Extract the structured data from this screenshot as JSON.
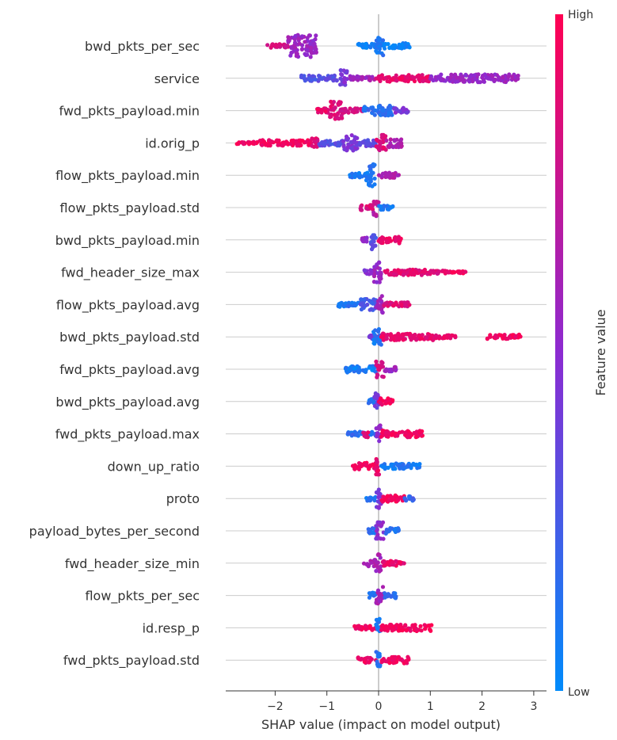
{
  "chart_data": {
    "type": "scatter",
    "subtype": "shap-beeswarm",
    "title": "",
    "xlabel": "SHAP value (impact on model output)",
    "ylabel": "",
    "xlim": [
      -2.95,
      3.0
    ],
    "xticks": [
      -2,
      -1,
      0,
      1,
      2,
      3
    ],
    "xtick_labels": [
      "−2",
      "−1",
      "0",
      "1",
      "2",
      "3"
    ],
    "grid": "horizontal-rows",
    "colorbar": {
      "title": "Feature value",
      "high_label": "High",
      "low_label": "Low",
      "low_color": "#008bfb",
      "mid_color": "#8c2bd1",
      "high_color": "#ff0052"
    },
    "features": [
      {
        "name": "bwd_pkts_per_sec",
        "segments": [
          [
            -2.15,
            -1.75,
            0.82,
            0.2
          ],
          [
            -1.75,
            -1.2,
            0.55,
            1.0
          ],
          [
            -0.4,
            -0.05,
            0.08,
            0.2
          ],
          [
            -0.05,
            0.1,
            0.1,
            0.9
          ],
          [
            0.1,
            0.6,
            0.05,
            0.25
          ]
        ]
      },
      {
        "name": "service",
        "segments": [
          [
            -1.5,
            -0.8,
            0.3,
            0.25
          ],
          [
            -0.75,
            -0.6,
            0.45,
            0.75
          ],
          [
            -0.55,
            -0.05,
            0.6,
            0.2
          ],
          [
            -0.05,
            1.0,
            0.9,
            0.3
          ],
          [
            1.0,
            1.2,
            0.5,
            0.2
          ],
          [
            1.2,
            2.7,
            0.55,
            0.35
          ]
        ]
      },
      {
        "name": "fwd_pkts_payload.min",
        "segments": [
          [
            -1.2,
            -0.95,
            0.9,
            0.2
          ],
          [
            -0.95,
            -0.7,
            0.85,
            0.8
          ],
          [
            -0.7,
            -0.3,
            0.8,
            0.2
          ],
          [
            -0.3,
            0.3,
            0.15,
            0.45
          ],
          [
            0.3,
            0.6,
            0.45,
            0.25
          ]
        ]
      },
      {
        "name": "id.orig_p",
        "segments": [
          [
            -2.75,
            -2.3,
            0.95,
            0.1
          ],
          [
            -2.3,
            -1.3,
            0.95,
            0.25
          ],
          [
            -1.3,
            -1.15,
            0.85,
            0.45
          ],
          [
            -1.15,
            -0.7,
            0.3,
            0.25
          ],
          [
            -0.7,
            -0.4,
            0.45,
            0.7
          ],
          [
            -0.4,
            -0.05,
            0.35,
            0.3
          ],
          [
            -0.05,
            0.15,
            0.85,
            0.75
          ],
          [
            0.15,
            0.45,
            0.65,
            0.4
          ]
        ]
      },
      {
        "name": "flow_pkts_payload.min",
        "segments": [
          [
            -0.6,
            -0.25,
            0.1,
            0.2
          ],
          [
            -0.25,
            -0.05,
            0.1,
            1.0
          ],
          [
            0.0,
            0.4,
            0.65,
            0.25
          ]
        ]
      },
      {
        "name": "flow_pkts_payload.std",
        "segments": [
          [
            -0.35,
            -0.1,
            0.85,
            0.25
          ],
          [
            -0.1,
            0.0,
            0.7,
            0.8
          ],
          [
            0.0,
            0.3,
            0.1,
            0.2
          ]
        ]
      },
      {
        "name": "bwd_pkts_payload.min",
        "segments": [
          [
            -0.35,
            -0.15,
            0.55,
            0.2
          ],
          [
            -0.15,
            -0.05,
            0.3,
            0.9
          ],
          [
            0.0,
            0.45,
            0.92,
            0.3
          ]
        ]
      },
      {
        "name": "fwd_header_size_max",
        "segments": [
          [
            -0.3,
            -0.05,
            0.45,
            0.2
          ],
          [
            -0.1,
            0.05,
            0.55,
            0.9
          ],
          [
            0.1,
            1.0,
            0.88,
            0.25
          ],
          [
            1.0,
            1.3,
            0.85,
            0.15
          ],
          [
            1.3,
            1.7,
            0.95,
            0.1
          ]
        ]
      },
      {
        "name": "flow_pkts_payload.avg",
        "segments": [
          [
            -0.8,
            -0.35,
            0.12,
            0.2
          ],
          [
            -0.35,
            -0.05,
            0.25,
            0.5
          ],
          [
            -0.05,
            0.1,
            0.6,
            0.8
          ],
          [
            0.1,
            0.6,
            0.85,
            0.2
          ]
        ]
      },
      {
        "name": "bwd_pkts_payload.std",
        "segments": [
          [
            -0.2,
            0.0,
            0.4,
            0.2
          ],
          [
            -0.1,
            0.05,
            0.1,
            0.8
          ],
          [
            0.05,
            1.1,
            0.9,
            0.3
          ],
          [
            1.1,
            1.5,
            0.9,
            0.15
          ],
          [
            2.1,
            2.75,
            0.95,
            0.2
          ]
        ]
      },
      {
        "name": "fwd_pkts_payload.avg",
        "segments": [
          [
            -0.65,
            -0.05,
            0.08,
            0.3
          ],
          [
            -0.05,
            0.1,
            0.8,
            0.75
          ],
          [
            0.1,
            0.35,
            0.55,
            0.2
          ]
        ]
      },
      {
        "name": "bwd_pkts_payload.avg",
        "segments": [
          [
            -0.2,
            -0.05,
            0.1,
            0.25
          ],
          [
            -0.08,
            0.02,
            0.4,
            0.8
          ],
          [
            0.0,
            0.3,
            0.95,
            0.3
          ]
        ]
      },
      {
        "name": "fwd_pkts_payload.max",
        "segments": [
          [
            -0.6,
            -0.05,
            0.15,
            0.2
          ],
          [
            -0.3,
            -0.2,
            0.9,
            0.35
          ],
          [
            -0.05,
            0.05,
            0.5,
            0.8
          ],
          [
            0.05,
            0.85,
            0.95,
            0.3
          ]
        ]
      },
      {
        "name": "down_up_ratio",
        "segments": [
          [
            -0.5,
            -0.05,
            0.95,
            0.3
          ],
          [
            -0.05,
            0.05,
            0.9,
            0.8
          ],
          [
            0.05,
            0.8,
            0.1,
            0.25
          ]
        ]
      },
      {
        "name": "proto",
        "segments": [
          [
            -0.25,
            -0.05,
            0.1,
            0.2
          ],
          [
            -0.05,
            0.05,
            0.45,
            0.9
          ],
          [
            0.05,
            0.5,
            0.95,
            0.3
          ],
          [
            0.5,
            0.7,
            0.2,
            0.2
          ]
        ]
      },
      {
        "name": "payload_bytes_per_second",
        "segments": [
          [
            -0.2,
            -0.05,
            0.15,
            0.25
          ],
          [
            -0.05,
            0.1,
            0.5,
            0.8
          ],
          [
            0.1,
            0.4,
            0.15,
            0.25
          ]
        ]
      },
      {
        "name": "fwd_header_size_min",
        "segments": [
          [
            -0.3,
            -0.05,
            0.65,
            0.3
          ],
          [
            -0.05,
            0.05,
            0.6,
            0.85
          ],
          [
            0.05,
            0.5,
            0.9,
            0.25
          ]
        ]
      },
      {
        "name": "flow_pkts_per_sec",
        "segments": [
          [
            -0.2,
            -0.05,
            0.15,
            0.25
          ],
          [
            -0.05,
            0.1,
            0.6,
            0.8
          ],
          [
            0.1,
            0.35,
            0.15,
            0.25
          ]
        ]
      },
      {
        "name": "id.resp_p",
        "segments": [
          [
            -0.5,
            -0.05,
            0.95,
            0.2
          ],
          [
            -0.05,
            0.05,
            0.1,
            0.8
          ],
          [
            0.05,
            1.05,
            0.95,
            0.3
          ]
        ]
      },
      {
        "name": "fwd_pkts_payload.std",
        "segments": [
          [
            -0.4,
            -0.05,
            0.92,
            0.25
          ],
          [
            -0.05,
            0.05,
            0.15,
            0.8
          ],
          [
            0.05,
            0.6,
            0.92,
            0.3
          ]
        ]
      }
    ]
  }
}
